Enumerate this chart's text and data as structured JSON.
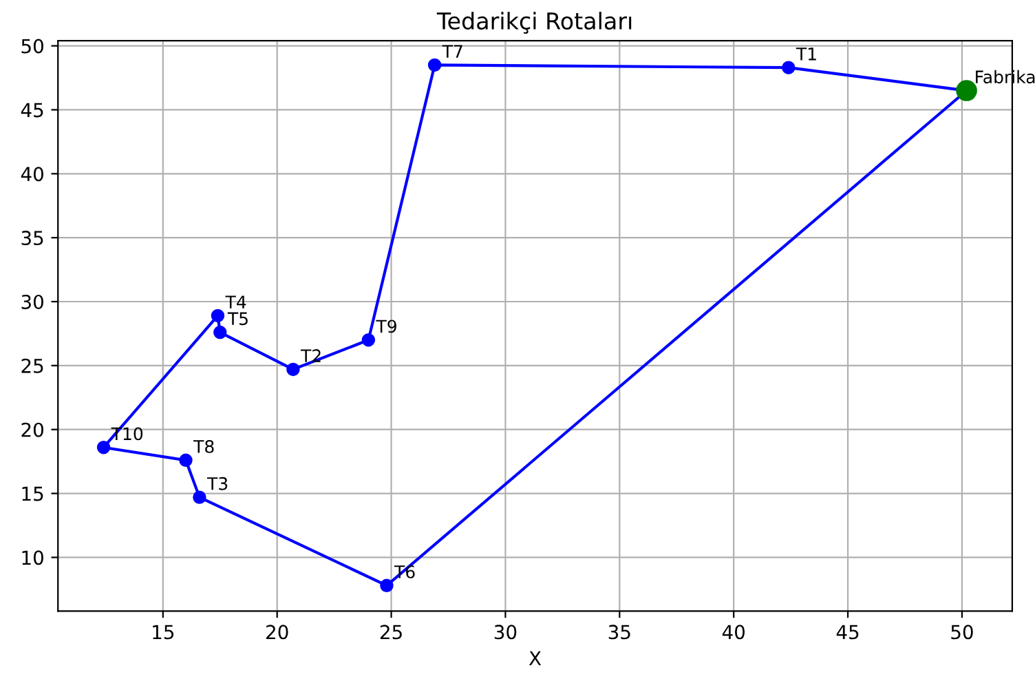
{
  "chart_data": {
    "type": "line",
    "title": "Tedarikçi Rotaları",
    "xlabel": "X",
    "series": [
      {
        "color": "#0000ff",
        "marker": "circle",
        "x": [
          50.2,
          42.4,
          26.9,
          24.0,
          20.7,
          17.5,
          17.4,
          12.4,
          16.0,
          16.6,
          24.8
        ],
        "values": [
          46.5,
          48.3,
          48.5,
          27.0,
          24.7,
          27.6,
          28.9,
          18.6,
          17.6,
          14.7,
          7.8
        ]
      },
      {
        "color": "#0000ff",
        "marker": "none",
        "x": [
          24.8,
          50.2
        ],
        "values": [
          7.8,
          46.5
        ]
      },
      {
        "type": "scatter",
        "color": "#008000",
        "marker": "circle",
        "x": [
          50.2
        ],
        "values": [
          46.5
        ]
      }
    ],
    "annotations": [
      {
        "text": "Fabrika",
        "x": 50.2,
        "y": 46.5
      },
      {
        "text": "T1",
        "x": 42.4,
        "y": 48.3
      },
      {
        "text": "T7",
        "x": 26.9,
        "y": 48.5
      },
      {
        "text": "T9",
        "x": 24.0,
        "y": 27.0
      },
      {
        "text": "T2",
        "x": 20.7,
        "y": 24.7
      },
      {
        "text": "T5",
        "x": 17.5,
        "y": 27.6
      },
      {
        "text": "T4",
        "x": 17.4,
        "y": 28.9
      },
      {
        "text": "T10",
        "x": 12.4,
        "y": 18.6
      },
      {
        "text": "T8",
        "x": 16.0,
        "y": 17.6
      },
      {
        "text": "T3",
        "x": 16.6,
        "y": 14.7
      },
      {
        "text": "T6",
        "x": 24.8,
        "y": 7.8
      }
    ],
    "xlim": [
      10.4,
      52.2
    ],
    "ylim": [
      5.8,
      50.4
    ],
    "xticks": [
      15,
      20,
      25,
      30,
      35,
      40,
      45,
      50
    ],
    "yticks": [
      10,
      15,
      20,
      25,
      30,
      35,
      40,
      45,
      50
    ],
    "grid": true
  }
}
